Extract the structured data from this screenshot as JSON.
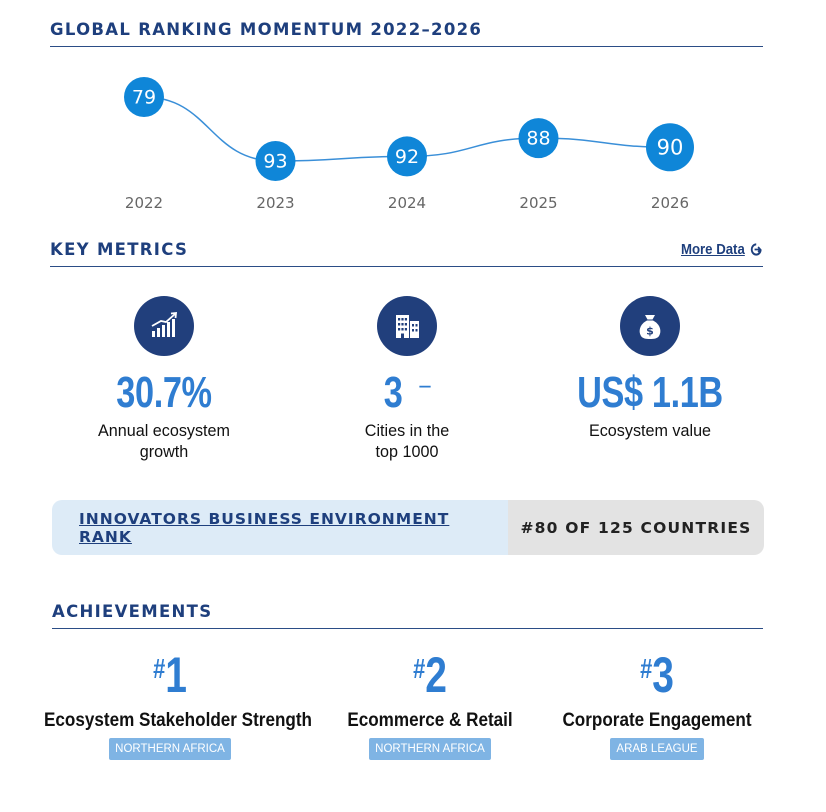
{
  "sections": {
    "momentum_title": "GLOBAL RANKING MOMENTUM 2022–2026",
    "metrics_title": "KEY METRICS",
    "more_data": "More Data",
    "achievements_title": "ACHIEVEMENTS"
  },
  "chart_data": {
    "type": "line",
    "x": [
      "2022",
      "2023",
      "2024",
      "2025",
      "2026"
    ],
    "values": [
      79,
      93,
      92,
      88,
      90
    ],
    "title": "GLOBAL RANKING MOMENTUM 2022–2026",
    "colors": {
      "marker": "#0f86d8",
      "line": "#3a8fd8",
      "marker_text": "#ffffff",
      "tick": "#666666"
    }
  },
  "metrics": [
    {
      "icon": "growth-chart-icon",
      "value": "30.7%",
      "label_line1": "Annual ecosystem",
      "label_line2": "growth"
    },
    {
      "icon": "buildings-icon",
      "value": "3",
      "trend": "–",
      "label_line1": "Cities in the",
      "label_line2": "top 1000"
    },
    {
      "icon": "money-bag-icon",
      "value": "US$ 1.1B",
      "label_line1": "Ecosystem value",
      "label_line2": ""
    }
  ],
  "rank": {
    "label": "INNOVATORS BUSINESS ENVIRONMENT RANK",
    "value": "#80 OF 125 COUNTRIES"
  },
  "achievements": [
    {
      "hash": "#",
      "rank": "1",
      "name": "Ecosystem Stakeholder Strength",
      "tag": "NORTHERN AFRICA"
    },
    {
      "hash": "#",
      "rank": "2",
      "name": "Ecommerce & Retail",
      "tag": "NORTHERN AFRICA"
    },
    {
      "hash": "#",
      "rank": "3",
      "name": "Corporate Engagement",
      "tag": "ARAB LEAGUE"
    }
  ],
  "colors": {
    "navy": "#1e3f7d",
    "accent_blue": "#2f7dd1",
    "rank_label_bg": "#ddebf7",
    "rank_value_bg": "#e3e3e3",
    "tag_bg": "#7fb4e4"
  }
}
